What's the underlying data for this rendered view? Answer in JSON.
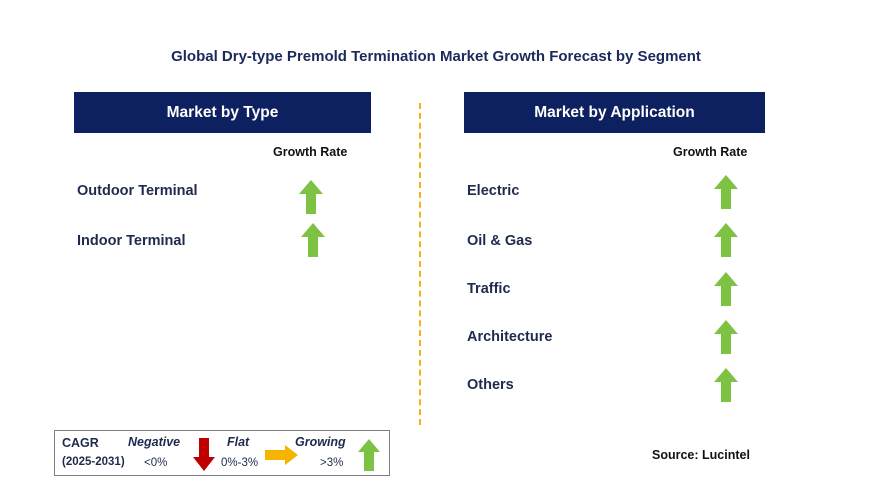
{
  "title": "Global Dry-type Premold Termination Market Growth Forecast by Segment",
  "type_panel": {
    "header": "Market by Type",
    "growth_label": "Growth Rate",
    "items": [
      {
        "label": "Outdoor Terminal",
        "trend": "growing"
      },
      {
        "label": "Indoor Terminal",
        "trend": "growing"
      }
    ]
  },
  "application_panel": {
    "header": "Market by Application",
    "growth_label": "Growth Rate",
    "items": [
      {
        "label": "Electric",
        "trend": "growing"
      },
      {
        "label": "Oil & Gas",
        "trend": "growing"
      },
      {
        "label": "Traffic",
        "trend": "growing"
      },
      {
        "label": "Architecture",
        "trend": "growing"
      },
      {
        "label": "Others",
        "trend": "growing"
      }
    ]
  },
  "legend": {
    "cagr": "CAGR",
    "period": "(2025-2031)",
    "negative": {
      "label": "Negative",
      "range": "<0%"
    },
    "flat": {
      "label": "Flat",
      "range": "0%-3%"
    },
    "growing": {
      "label": "Growing",
      "range": ">3%"
    }
  },
  "source": "Source: Lucintel",
  "colors": {
    "header_bg": "#0d2060",
    "growing": "#7dc243",
    "negative": "#c00000",
    "flat": "#f5b400",
    "divider": "#f2b417"
  }
}
